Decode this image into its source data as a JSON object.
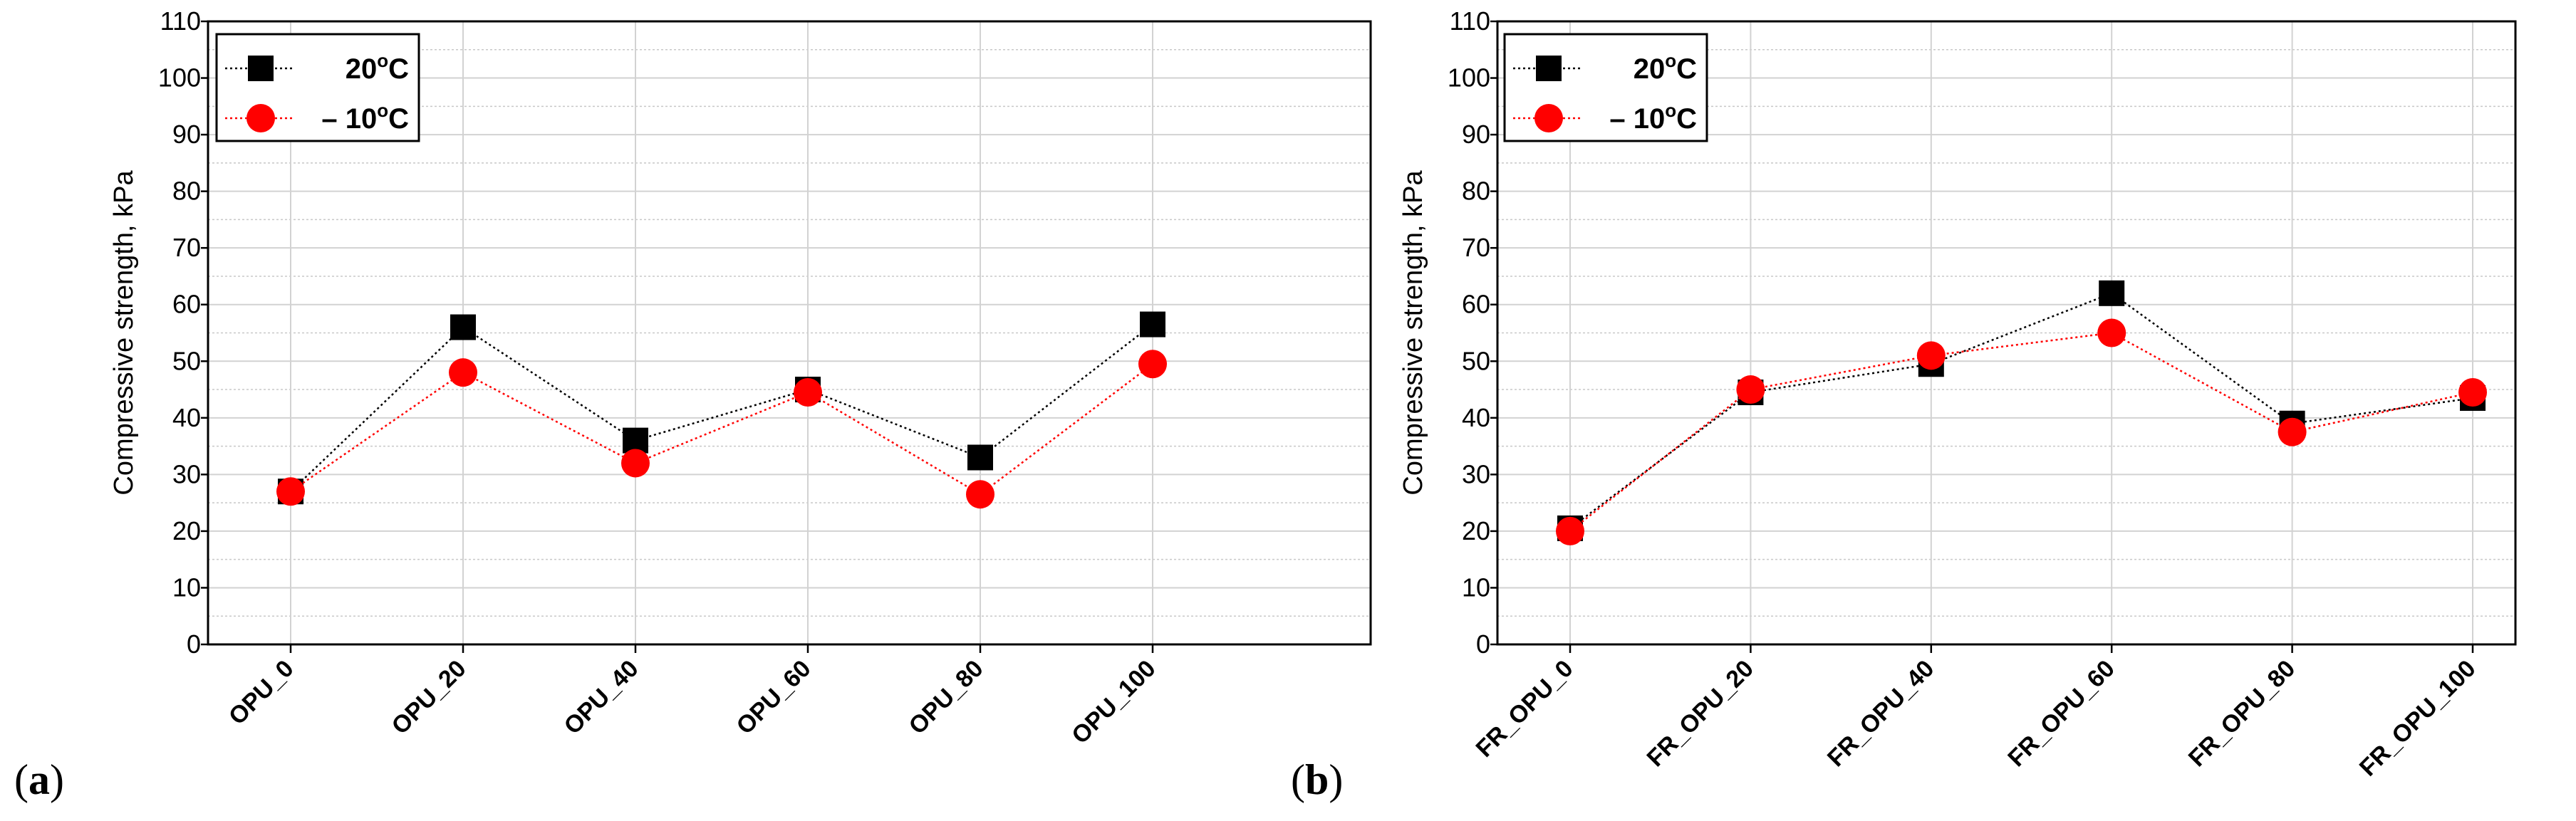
{
  "figure": {
    "panels": [
      {
        "label_open": "(",
        "label_letter": "a",
        "label_close": ")"
      },
      {
        "label_open": "(",
        "label_letter": "b",
        "label_close": ")"
      }
    ]
  },
  "chart_data": [
    {
      "type": "line",
      "panel": "a",
      "title": "",
      "xlabel": "",
      "ylabel": "Compressive strength, kPa",
      "ylim": [
        0,
        110
      ],
      "yticks": [
        0,
        10,
        20,
        30,
        40,
        50,
        60,
        70,
        80,
        90,
        100,
        110
      ],
      "grid": true,
      "legend_position": "top-left",
      "categories": [
        "OPU_0",
        "OPU_20",
        "OPU_40",
        "OPU_60",
        "OPU_80",
        "OPU_100"
      ],
      "series": [
        {
          "name": "20",
          "unit": "oC",
          "marker": "square",
          "color": "#000000",
          "values": [
            27,
            56,
            36,
            45,
            33,
            56.5
          ]
        },
        {
          "name": "– 10",
          "unit": "oC",
          "marker": "circle",
          "color": "#ff0000",
          "values": [
            27,
            48,
            32,
            44.5,
            26.5,
            49.5
          ]
        }
      ]
    },
    {
      "type": "line",
      "panel": "b",
      "title": "",
      "xlabel": "",
      "ylabel": "Compressive strength, kPa",
      "ylim": [
        0,
        110
      ],
      "yticks": [
        0,
        10,
        20,
        30,
        40,
        50,
        60,
        70,
        80,
        90,
        100,
        110
      ],
      "grid": true,
      "legend_position": "top-left",
      "categories": [
        "FR_OPU_0",
        "FR_OPU_20",
        "FR_OPU_40",
        "FR_OPU_60",
        "FR_OPU_80",
        "FR_OPU_100"
      ],
      "series": [
        {
          "name": "20",
          "unit": "oC",
          "marker": "square",
          "color": "#000000",
          "values": [
            20.5,
            44.5,
            49.5,
            62,
            39,
            43.5
          ]
        },
        {
          "name": "– 10",
          "unit": "oC",
          "marker": "circle",
          "color": "#ff0000",
          "values": [
            20,
            45,
            51,
            55,
            37.5,
            44.5
          ]
        }
      ]
    }
  ]
}
